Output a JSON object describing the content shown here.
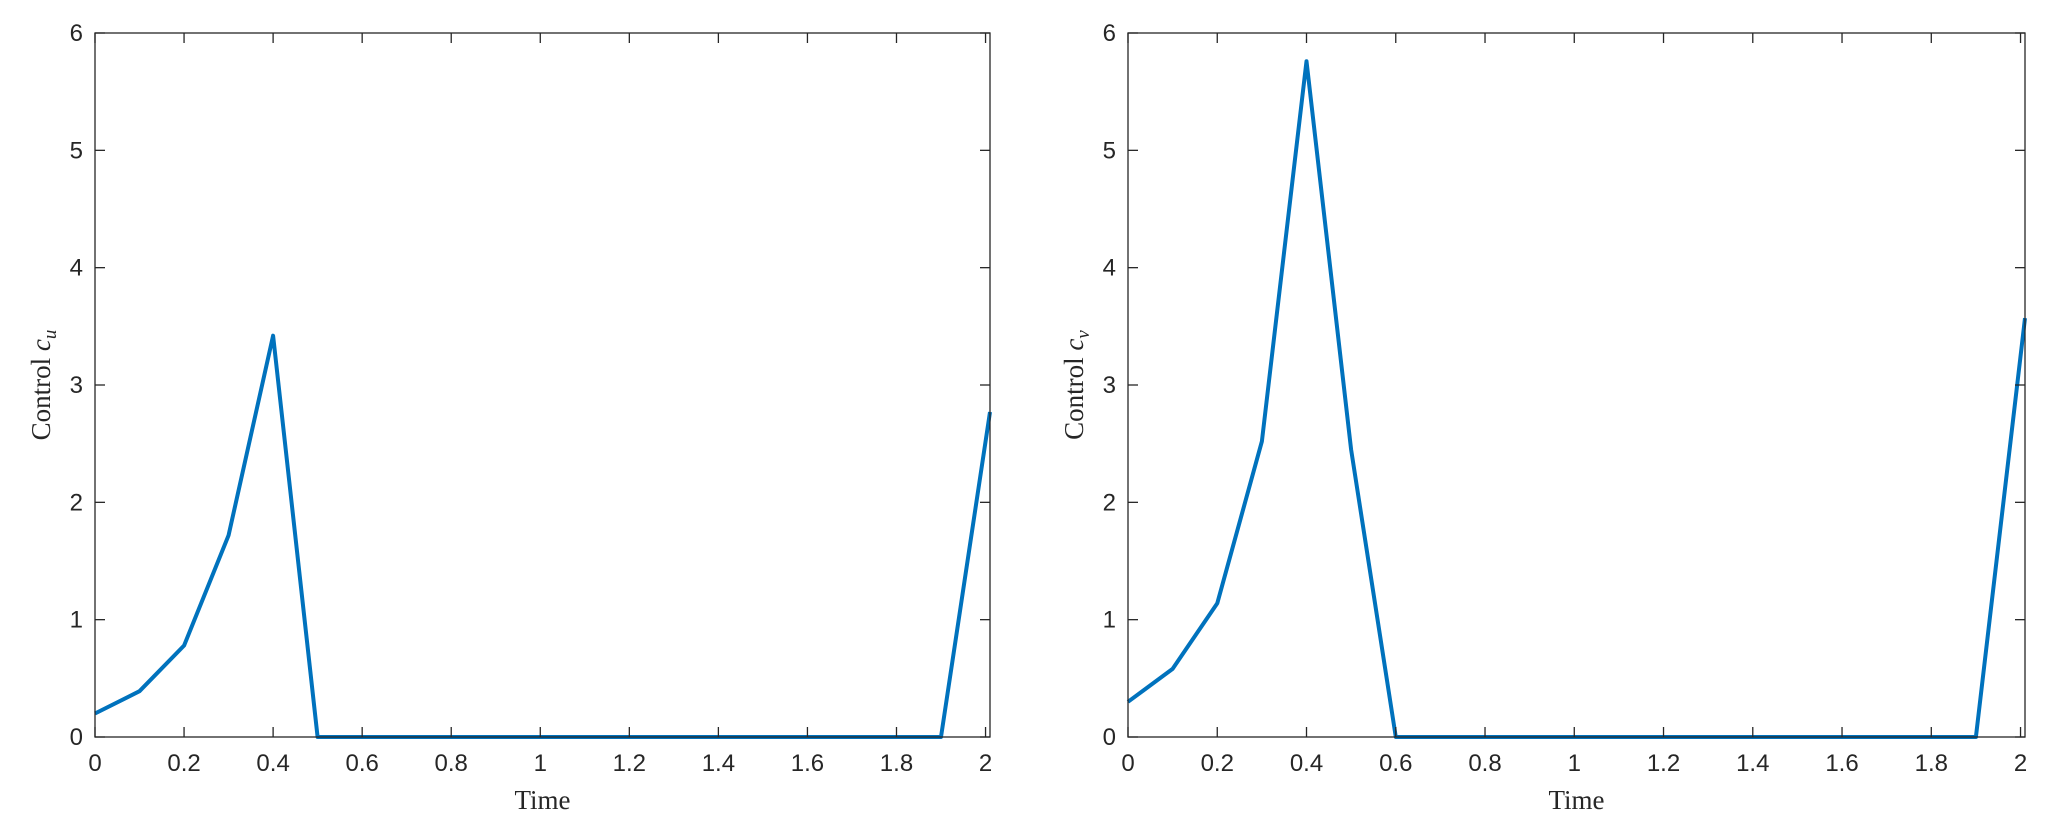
{
  "chart_data": [
    {
      "type": "line",
      "xlabel": "Time",
      "ylabel_main": "Control ",
      "ylabel_var": "c",
      "ylabel_sub": "u",
      "xlim": [
        0,
        2.01
      ],
      "ylim": [
        0,
        6
      ],
      "xticks": [
        0,
        0.2,
        0.4,
        0.6,
        0.8,
        1,
        1.2,
        1.4,
        1.6,
        1.8,
        2
      ],
      "xtick_labels": [
        "0",
        "0.2",
        "0.4",
        "0.6",
        "0.8",
        "1",
        "1.2",
        "1.4",
        "1.6",
        "1.8",
        "2"
      ],
      "yticks": [
        0,
        1,
        2,
        3,
        4,
        5,
        6
      ],
      "ytick_labels": [
        "0",
        "1",
        "2",
        "3",
        "4",
        "5",
        "6"
      ],
      "grid": false,
      "color": "#0072BD",
      "series": [
        {
          "x": [
            0,
            0.1,
            0.2,
            0.3,
            0.4,
            0.5,
            0.6,
            0.7,
            0.8,
            0.9,
            1.0,
            1.1,
            1.2,
            1.3,
            1.4,
            1.5,
            1.6,
            1.7,
            1.8,
            1.9,
            2.01
          ],
          "y": [
            0.2,
            0.39,
            0.78,
            1.72,
            3.42,
            0,
            0,
            0,
            0,
            0,
            0,
            0,
            0,
            0,
            0,
            0,
            0,
            0,
            0,
            0,
            2.77
          ]
        }
      ]
    },
    {
      "type": "line",
      "xlabel": "Time",
      "ylabel_main": "Control ",
      "ylabel_var": "c",
      "ylabel_sub": "v",
      "xlim": [
        0,
        2.01
      ],
      "ylim": [
        0,
        6
      ],
      "xticks": [
        0,
        0.2,
        0.4,
        0.6,
        0.8,
        1,
        1.2,
        1.4,
        1.6,
        1.8,
        2
      ],
      "xtick_labels": [
        "0",
        "0.2",
        "0.4",
        "0.6",
        "0.8",
        "1",
        "1.2",
        "1.4",
        "1.6",
        "1.8",
        "2"
      ],
      "yticks": [
        0,
        1,
        2,
        3,
        4,
        5,
        6
      ],
      "ytick_labels": [
        "0",
        "1",
        "2",
        "3",
        "4",
        "5",
        "6"
      ],
      "grid": false,
      "color": "#0072BD",
      "series": [
        {
          "x": [
            0,
            0.1,
            0.2,
            0.3,
            0.4,
            0.5,
            0.6,
            0.7,
            0.8,
            0.9,
            1.0,
            1.1,
            1.2,
            1.3,
            1.4,
            1.5,
            1.6,
            1.7,
            1.8,
            1.9,
            2.01
          ],
          "y": [
            0.3,
            0.58,
            1.14,
            2.52,
            5.76,
            2.45,
            0,
            0,
            0,
            0,
            0,
            0,
            0,
            0,
            0,
            0,
            0,
            0,
            0,
            0,
            3.57
          ]
        }
      ]
    }
  ]
}
